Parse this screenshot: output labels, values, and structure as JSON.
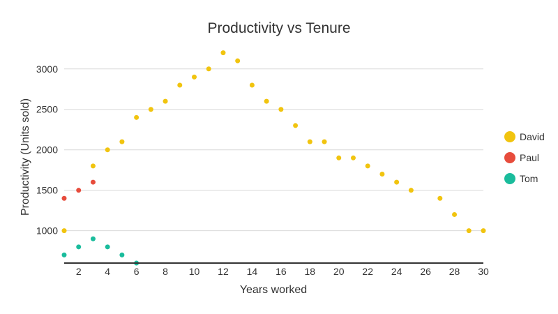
{
  "chart_data": {
    "type": "scatter",
    "title": "Productivity vs Tenure",
    "xlabel": "Years worked",
    "ylabel": "Productivity (Units sold)",
    "xlim": [
      1,
      30
    ],
    "ylim": [
      600,
      3300
    ],
    "x_ticks": [
      2,
      4,
      6,
      8,
      10,
      12,
      14,
      16,
      18,
      20,
      22,
      24,
      26,
      28,
      30
    ],
    "y_ticks": [
      1000,
      1500,
      2000,
      2500,
      3000
    ],
    "grid": true,
    "legend_position": "right",
    "series": [
      {
        "name": "David",
        "color": "#f1c40f",
        "points": [
          [
            1,
            1000
          ],
          [
            3,
            1800
          ],
          [
            4,
            2000
          ],
          [
            5,
            2100
          ],
          [
            6,
            2400
          ],
          [
            7,
            2500
          ],
          [
            8,
            2600
          ],
          [
            9,
            2800
          ],
          [
            10,
            2900
          ],
          [
            11,
            3000
          ],
          [
            12,
            3200
          ],
          [
            13,
            3100
          ],
          [
            14,
            2800
          ],
          [
            15,
            2600
          ],
          [
            16,
            2500
          ],
          [
            17,
            2300
          ],
          [
            18,
            2100
          ],
          [
            19,
            2100
          ],
          [
            20,
            1900
          ],
          [
            21,
            1900
          ],
          [
            22,
            1800
          ],
          [
            23,
            1700
          ],
          [
            24,
            1600
          ],
          [
            25,
            1500
          ],
          [
            27,
            1400
          ],
          [
            28,
            1200
          ],
          [
            29,
            1000
          ],
          [
            30,
            1000
          ]
        ]
      },
      {
        "name": "Paul",
        "color": "#e74c3c",
        "points": [
          [
            1,
            1400
          ],
          [
            2,
            1500
          ],
          [
            3,
            1600
          ]
        ]
      },
      {
        "name": "Tom",
        "color": "#1abc9c",
        "points": [
          [
            1,
            700
          ],
          [
            2,
            800
          ],
          [
            3,
            900
          ],
          [
            4,
            800
          ],
          [
            5,
            700
          ],
          [
            6,
            600
          ]
        ]
      }
    ]
  }
}
